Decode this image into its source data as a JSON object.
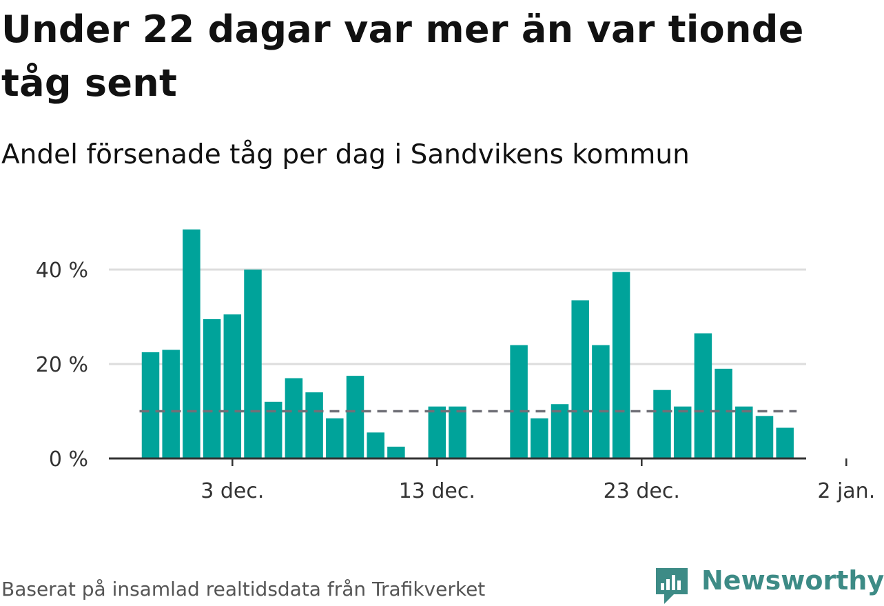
{
  "header": {
    "title": "Under 22 dagar var mer än var tionde tåg sent",
    "subtitle": "Andel försenade tåg per dag i Sandvikens kommun"
  },
  "footer": {
    "source": "Baserat på insamlad realtidsdata från Trafikverket",
    "brand": "Newsworthy"
  },
  "colors": {
    "bar": "#00a39a",
    "reference_line": "#707078",
    "grid": "#dddddd",
    "axis": "#333333",
    "brand": "#3d8b86"
  },
  "chart_data": {
    "type": "bar",
    "x_start_date": "2020-11-29",
    "values": [
      22.5,
      23,
      48.5,
      29.5,
      30.5,
      40,
      12,
      17,
      14,
      8.5,
      17.5,
      5.5,
      2.5,
      0,
      11,
      11,
      0,
      0,
      24,
      8.5,
      11.5,
      33.5,
      24,
      39.5,
      0,
      14.5,
      11,
      26.5,
      19,
      11,
      9,
      6.5
    ],
    "reference_line": 10,
    "ylim": [
      0,
      50
    ],
    "yticks": [
      0,
      20,
      40
    ],
    "ytick_labels": [
      "0 %",
      "20 %",
      "40 %"
    ],
    "xticks": [
      {
        "index": 4,
        "label": "3 dec."
      },
      {
        "index": 14,
        "label": "13 dec."
      },
      {
        "index": 24,
        "label": "23 dec."
      },
      {
        "index": 34,
        "label": "2 jan."
      }
    ],
    "grid": true
  }
}
